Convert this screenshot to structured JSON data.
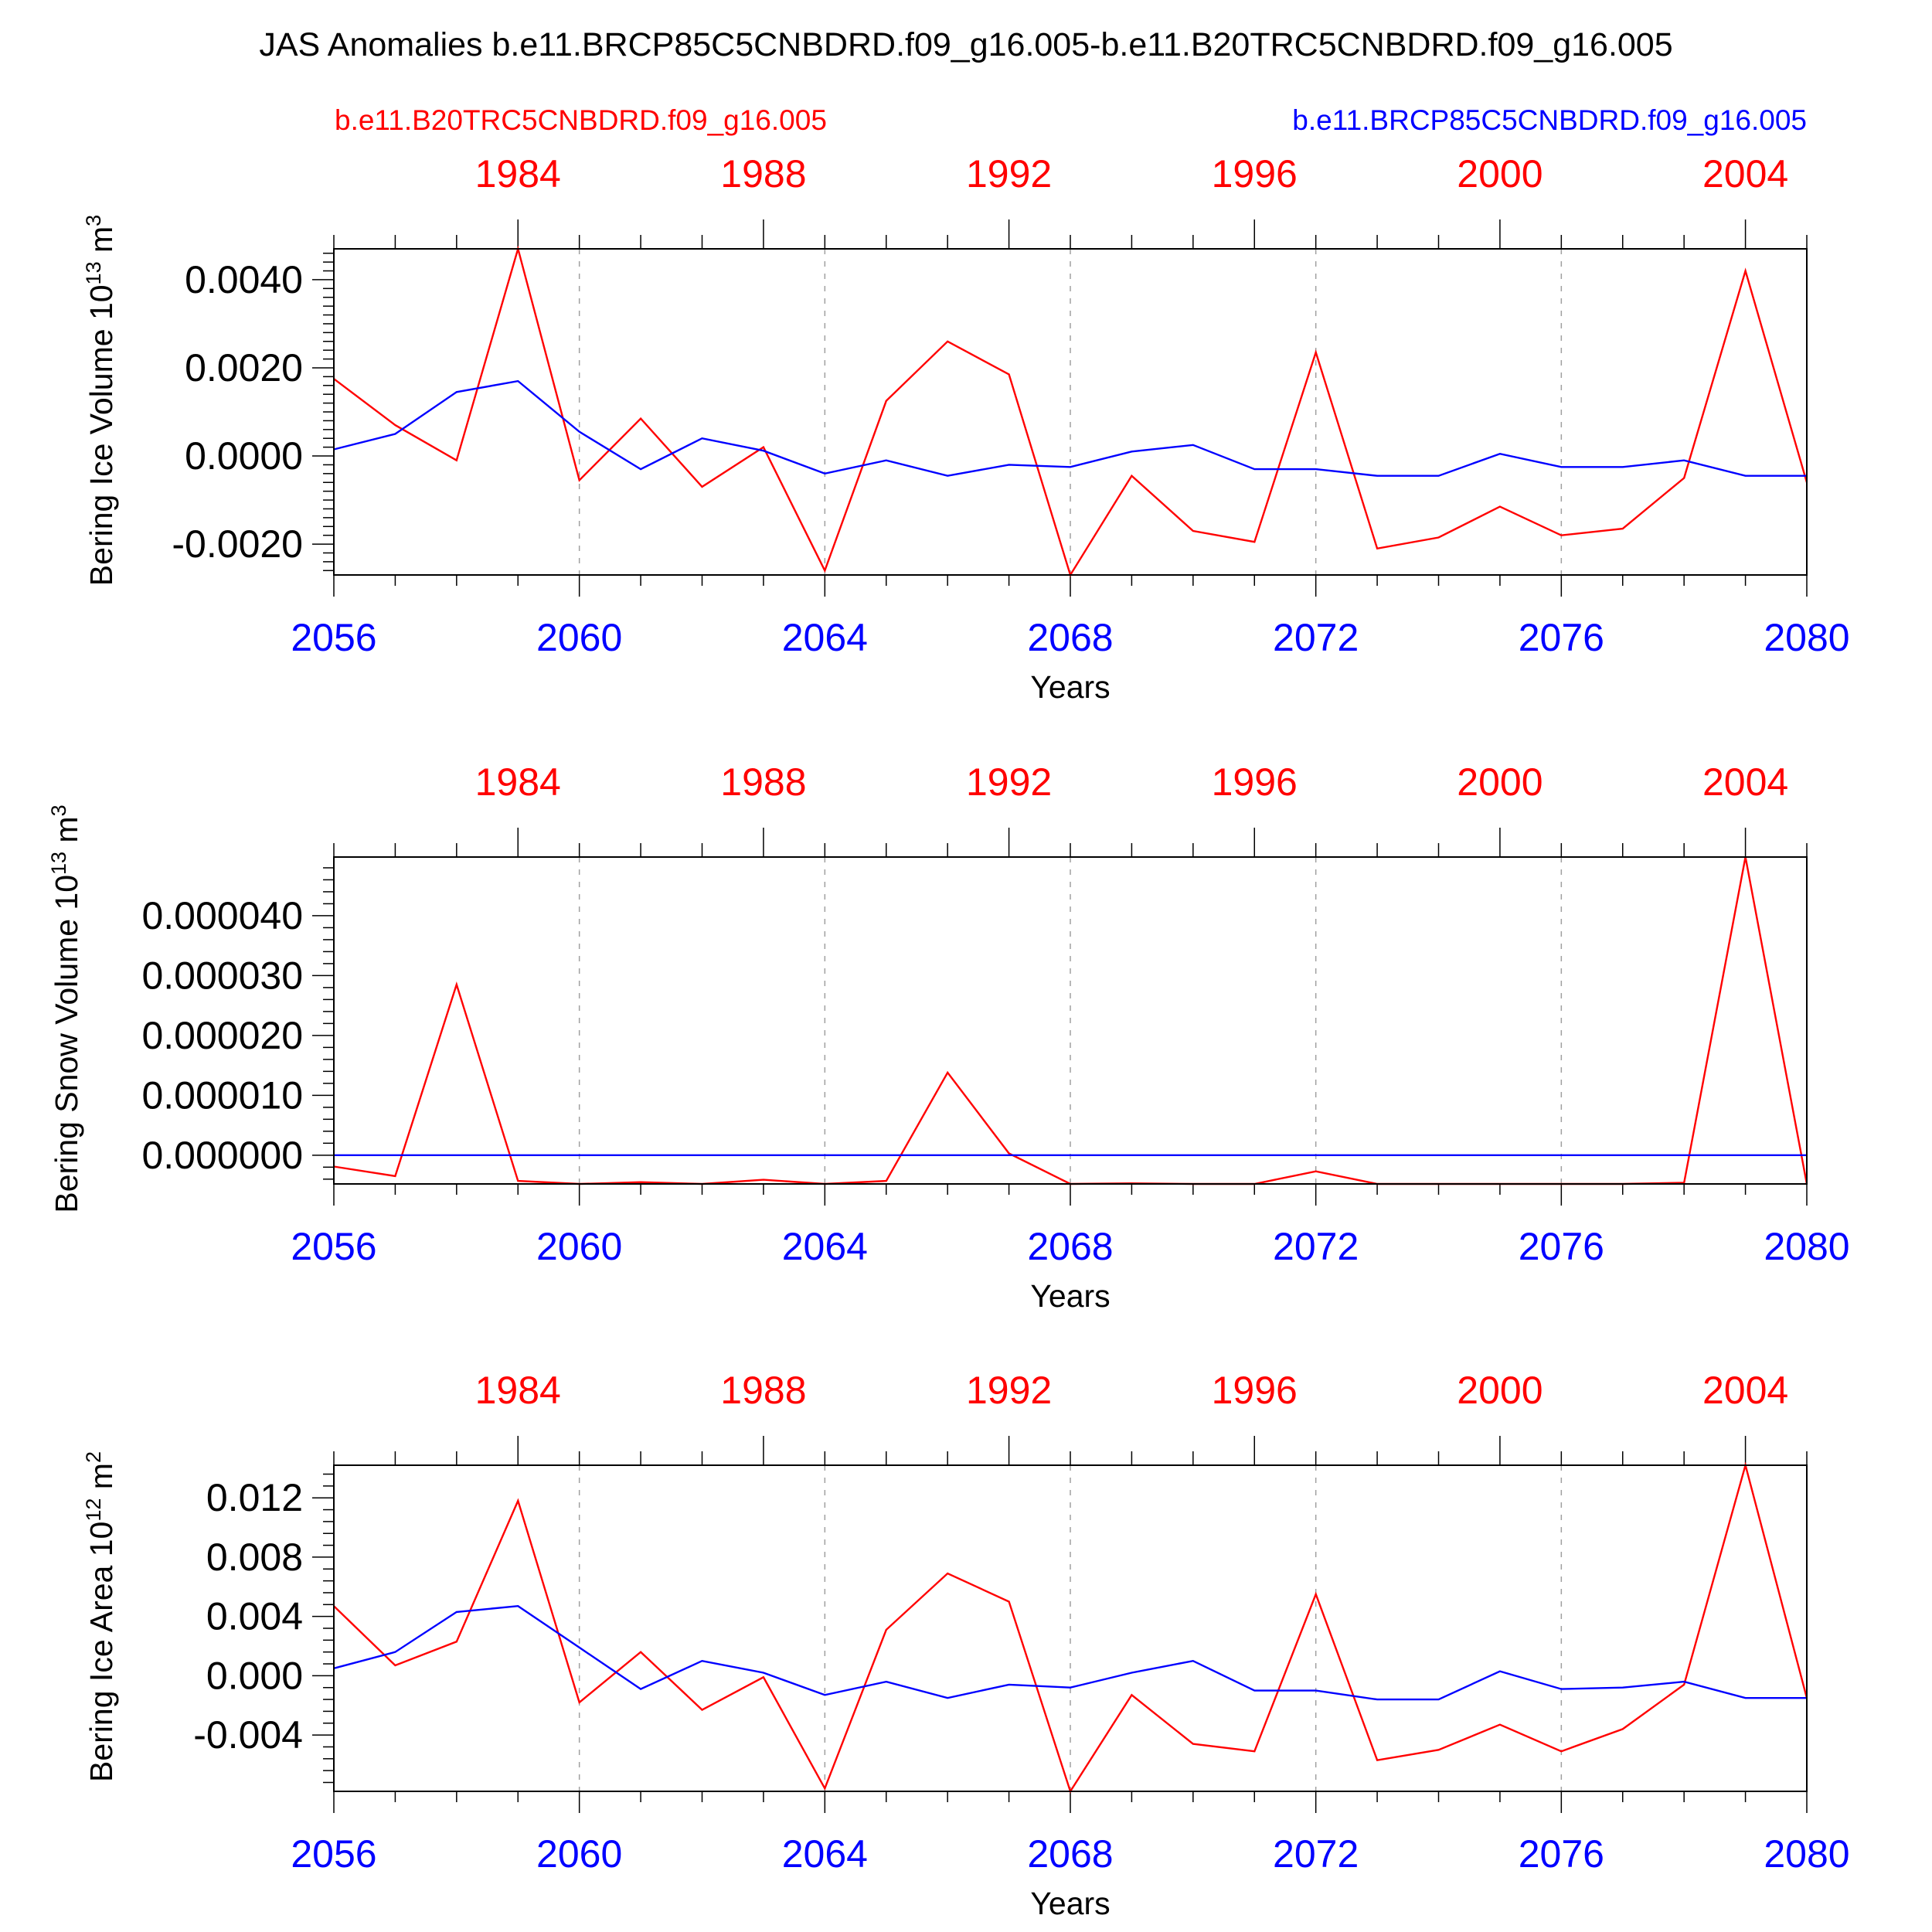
{
  "figure": {
    "title": "JAS Anomalies b.e11.BRCP85C5CNBDRD.f09_g16.005-b.e11.B20TRC5CNBDRD.f09_g16.005",
    "legend": {
      "left": {
        "label": "b.e11.B20TRC5CNBDRD.f09_g16.005",
        "color": "#ff0000"
      },
      "right": {
        "label": "b.e11.BRCP85C5CNBDRD.f09_g16.005",
        "color": "#0000ff"
      }
    }
  },
  "colors": {
    "historical": "#ff0000",
    "rcp85": "#0000ff",
    "axis": "#000000",
    "grid": "#a0a0a0"
  },
  "chart_data": [
    {
      "type": "line",
      "ylabel": "Bering Ice Volume 10",
      "ylabel_exp": "13",
      "ylabel_unit": " m",
      "ylabel_unit_exp": "3",
      "xlabel": "Years",
      "x_bottom": {
        "range": [
          2056,
          2080
        ],
        "ticks": [
          2056,
          2060,
          2064,
          2068,
          2072,
          2076,
          2080
        ],
        "labels": [
          "2056",
          "2060",
          "2064",
          "2068",
          "2072",
          "2076",
          "2080"
        ]
      },
      "x_top": {
        "range": [
          1981,
          2005
        ],
        "ticks": [
          1984,
          1988,
          1992,
          1996,
          2000,
          2004
        ],
        "labels": [
          "1984",
          "1988",
          "1992",
          "1996",
          "2000",
          "2004"
        ]
      },
      "ylim": [
        -0.0027,
        0.0047
      ],
      "yticks": [
        -0.002,
        0.0,
        0.002,
        0.004
      ],
      "ytick_labels": [
        "-0.0020",
        "0.0000",
        "0.0020",
        "0.0040"
      ],
      "yminor": 0.0002,
      "series": [
        {
          "name": "b.e11.B20TRC5CNBDRD.f09_g16.005",
          "color": "#ff0000",
          "x": [
            2056,
            2057,
            2058,
            2059,
            2060,
            2061,
            2062,
            2063,
            2064,
            2065,
            2066,
            2067,
            2068,
            2069,
            2070,
            2071,
            2072,
            2073,
            2074,
            2075,
            2076,
            2077,
            2078,
            2079,
            2080
          ],
          "values": [
            0.00175,
            0.0007,
            -0.0001,
            0.0047,
            -0.00055,
            0.00085,
            -0.0007,
            0.0002,
            -0.0026,
            0.00125,
            0.0026,
            0.00185,
            -0.0027,
            -0.00045,
            -0.0017,
            -0.00195,
            0.00235,
            -0.0021,
            -0.00185,
            -0.00115,
            -0.0018,
            -0.00165,
            -0.0005,
            0.0042,
            -0.0006
          ]
        },
        {
          "name": "b.e11.BRCP85C5CNBDRD.f09_g16.005",
          "color": "#0000ff",
          "x": [
            2056,
            2057,
            2058,
            2059,
            2060,
            2061,
            2062,
            2063,
            2064,
            2065,
            2066,
            2067,
            2068,
            2069,
            2070,
            2071,
            2072,
            2073,
            2074,
            2075,
            2076,
            2077,
            2078,
            2079,
            2080
          ],
          "values": [
            0.00015,
            0.0005,
            0.00145,
            0.0017,
            0.00055,
            -0.0003,
            0.0004,
            0.00012,
            -0.0004,
            -0.0001,
            -0.00045,
            -0.0002,
            -0.00025,
            0.0001,
            0.00025,
            -0.0003,
            -0.0003,
            -0.00045,
            -0.00045,
            5e-05,
            -0.00025,
            -0.00025,
            -0.0001,
            -0.00045,
            -0.00045
          ]
        }
      ]
    },
    {
      "type": "line",
      "ylabel": "Bering Snow Volume 10",
      "ylabel_exp": "13",
      "ylabel_unit": " m",
      "ylabel_unit_exp": "3",
      "xlabel": "Years",
      "x_bottom": {
        "range": [
          2056,
          2080
        ],
        "ticks": [
          2056,
          2060,
          2064,
          2068,
          2072,
          2076,
          2080
        ],
        "labels": [
          "2056",
          "2060",
          "2064",
          "2068",
          "2072",
          "2076",
          "2080"
        ]
      },
      "x_top": {
        "range": [
          1981,
          2005
        ],
        "ticks": [
          1984,
          1988,
          1992,
          1996,
          2000,
          2004
        ],
        "labels": [
          "1984",
          "1988",
          "1992",
          "1996",
          "2000",
          "2004"
        ]
      },
      "ylim": [
        -4.8e-06,
        4.98e-05
      ],
      "yticks": [
        0.0,
        1e-05,
        2e-05,
        3e-05,
        4e-05
      ],
      "ytick_labels": [
        "0.000000",
        "0.000010",
        "0.000020",
        "0.000030",
        "0.000040"
      ],
      "yminor": 2e-06,
      "series": [
        {
          "name": "b.e11.B20TRC5CNBDRD.f09_g16.005",
          "color": "#ff0000",
          "x": [
            2056,
            2057,
            2058,
            2059,
            2060,
            2061,
            2062,
            2063,
            2064,
            2065,
            2066,
            2067,
            2068,
            2069,
            2070,
            2071,
            2072,
            2073,
            2074,
            2075,
            2076,
            2077,
            2078,
            2079,
            2080
          ],
          "values": [
            -1.9e-06,
            -3.5e-06,
            2.85e-05,
            -4.3e-06,
            -4.8e-06,
            -4.5e-06,
            -4.8e-06,
            -4.1e-06,
            -4.8e-06,
            -4.3e-06,
            1.38e-05,
            3e-07,
            -4.8e-06,
            -4.7e-06,
            -4.8e-06,
            -4.8e-06,
            -2.7e-06,
            -4.8e-06,
            -4.8e-06,
            -4.8e-06,
            -4.8e-06,
            -4.8e-06,
            -4.6e-06,
            4.98e-05,
            -4.8e-06
          ]
        },
        {
          "name": "b.e11.BRCP85C5CNBDRD.f09_g16.005",
          "color": "#0000ff",
          "x": [
            2056,
            2057,
            2058,
            2059,
            2060,
            2061,
            2062,
            2063,
            2064,
            2065,
            2066,
            2067,
            2068,
            2069,
            2070,
            2071,
            2072,
            2073,
            2074,
            2075,
            2076,
            2077,
            2078,
            2079,
            2080
          ],
          "values": [
            0,
            0,
            0,
            0,
            0,
            0,
            0,
            0,
            0,
            0,
            0,
            0,
            0,
            0,
            0,
            0,
            0,
            0,
            0,
            0,
            0,
            0,
            0,
            0,
            0
          ]
        }
      ]
    },
    {
      "type": "line",
      "ylabel": "Bering Ice Area 10",
      "ylabel_exp": "12",
      "ylabel_unit": " m",
      "ylabel_unit_exp": "2",
      "xlabel": "Years",
      "x_bottom": {
        "range": [
          2056,
          2080
        ],
        "ticks": [
          2056,
          2060,
          2064,
          2068,
          2072,
          2076,
          2080
        ],
        "labels": [
          "2056",
          "2060",
          "2064",
          "2068",
          "2072",
          "2076",
          "2080"
        ]
      },
      "x_top": {
        "range": [
          1981,
          2005
        ],
        "ticks": [
          1984,
          1988,
          1992,
          1996,
          2000,
          2004
        ],
        "labels": [
          "1984",
          "1988",
          "1992",
          "1996",
          "2000",
          "2004"
        ]
      },
      "ylim": [
        -0.0078,
        0.0142
      ],
      "yticks": [
        -0.004,
        0.0,
        0.004,
        0.008,
        0.012
      ],
      "ytick_labels": [
        "-0.004",
        "0.000",
        "0.004",
        "0.008",
        "0.012"
      ],
      "yminor": 0.0008,
      "series": [
        {
          "name": "b.e11.B20TRC5CNBDRD.f09_g16.005",
          "color": "#ff0000",
          "x": [
            2056,
            2057,
            2058,
            2059,
            2060,
            2061,
            2062,
            2063,
            2064,
            2065,
            2066,
            2067,
            2068,
            2069,
            2070,
            2071,
            2072,
            2073,
            2074,
            2075,
            2076,
            2077,
            2078,
            2079,
            2080
          ],
          "values": [
            0.0047,
            0.0007,
            0.0023,
            0.0118,
            -0.0018,
            0.0016,
            -0.0023,
            -0.0001,
            -0.0076,
            0.0031,
            0.0069,
            0.005,
            -0.0078,
            -0.0013,
            -0.0046,
            -0.0051,
            0.0055,
            -0.0057,
            -0.005,
            -0.0033,
            -0.0051,
            -0.0036,
            -0.0006,
            0.0142,
            -0.0015
          ]
        },
        {
          "name": "b.e11.BRCP85C5CNBDRD.f09_g16.005",
          "color": "#0000ff",
          "x": [
            2056,
            2057,
            2058,
            2059,
            2060,
            2061,
            2062,
            2063,
            2064,
            2065,
            2066,
            2067,
            2068,
            2069,
            2070,
            2071,
            2072,
            2073,
            2074,
            2075,
            2076,
            2077,
            2078,
            2079,
            2080
          ],
          "values": [
            0.0005,
            0.0016,
            0.0043,
            0.0047,
            0.0019,
            -0.0009,
            0.001,
            0.0002,
            -0.0013,
            -0.0004,
            -0.0015,
            -0.0006,
            -0.0008,
            0.0002,
            0.001,
            -0.001,
            -0.001,
            -0.0016,
            -0.0016,
            0.0003,
            -0.0009,
            -0.0008,
            -0.0004,
            -0.0015,
            -0.0015
          ]
        }
      ]
    }
  ]
}
